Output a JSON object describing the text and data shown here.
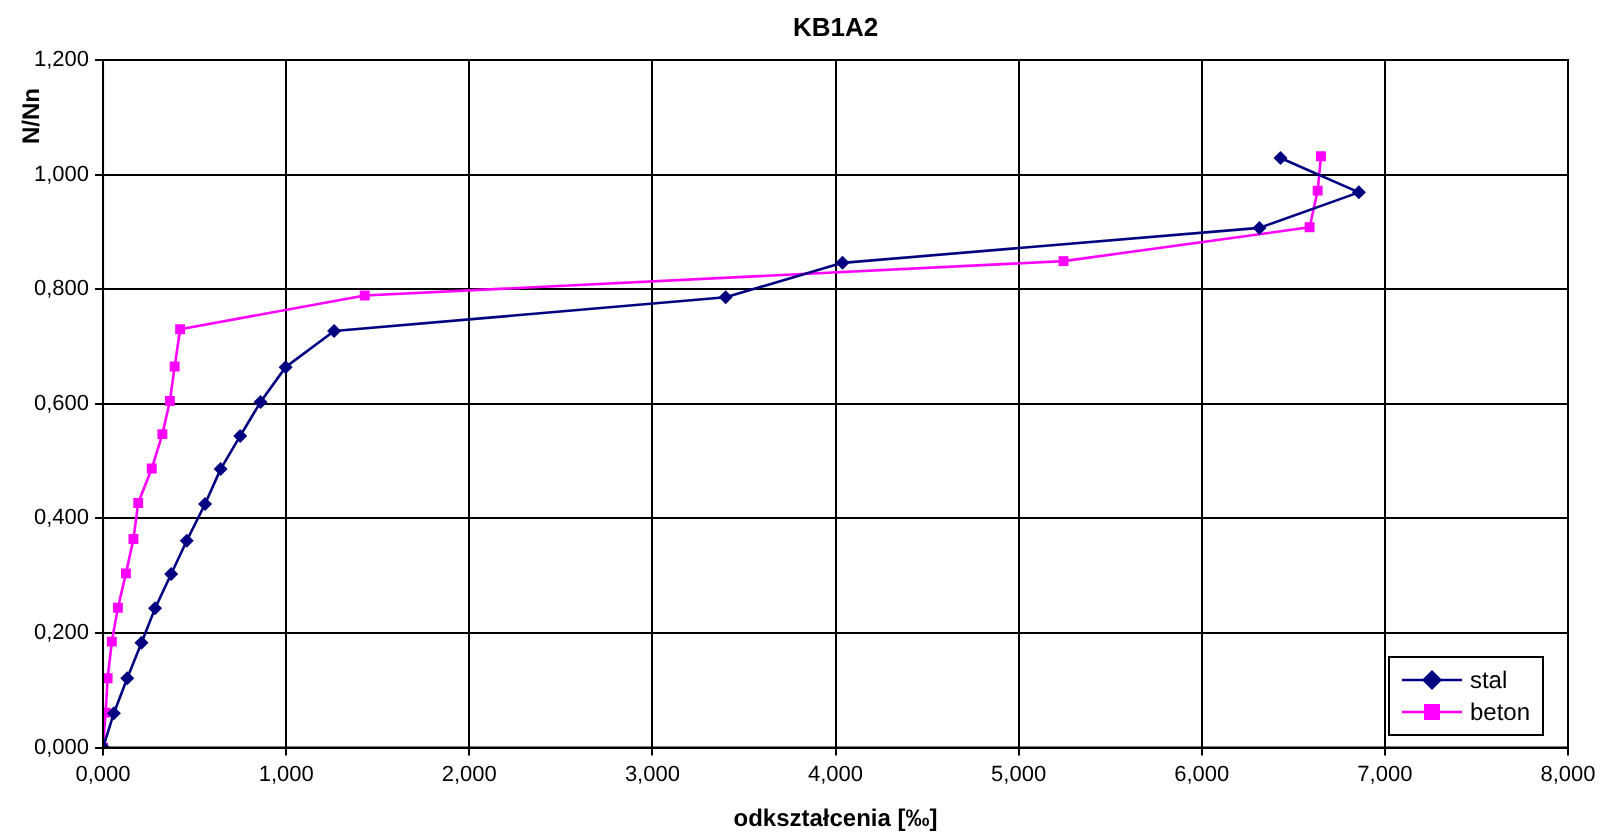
{
  "chart_data": {
    "type": "line",
    "title": "KB1A2",
    "xlabel": "odkształcenia [‰]",
    "ylabel": "N/Nn",
    "series": [
      {
        "name": "stal",
        "color": "#000080",
        "marker": "diamond",
        "x": [
          0,
          0.059,
          0.132,
          0.21,
          0.284,
          0.372,
          0.457,
          0.557,
          0.642,
          0.749,
          0.86,
          0.997,
          1.262,
          3.4,
          4.038,
          6.315,
          6.858,
          6.43
        ],
        "values": [
          0,
          0.06,
          0.121,
          0.183,
          0.243,
          0.303,
          0.361,
          0.425,
          0.486,
          0.544,
          0.603,
          0.664,
          0.727,
          0.786,
          0.846,
          0.907,
          0.969,
          1.029
        ]
      },
      {
        "name": "beton",
        "color": "#ff00ff",
        "marker": "square",
        "x": [
          0,
          0.014,
          0.025,
          0.048,
          0.081,
          0.125,
          0.166,
          0.192,
          0.266,
          0.324,
          0.365,
          0.391,
          0.421,
          1.429,
          5.245,
          6.589,
          6.633,
          6.651
        ],
        "values": [
          0,
          0.061,
          0.121,
          0.185,
          0.244,
          0.304,
          0.364,
          0.427,
          0.487,
          0.547,
          0.605,
          0.665,
          0.73,
          0.789,
          0.849,
          0.908,
          0.972,
          1.032
        ]
      }
    ],
    "xlim": [
      0,
      8
    ],
    "xticks": [
      {
        "value": 0,
        "label": "0,000"
      },
      {
        "value": 1,
        "label": "1,000"
      },
      {
        "value": 2,
        "label": "2,000"
      },
      {
        "value": 3,
        "label": "3,000"
      },
      {
        "value": 4,
        "label": "4,000"
      },
      {
        "value": 5,
        "label": "5,000"
      },
      {
        "value": 6,
        "label": "6,000"
      },
      {
        "value": 7,
        "label": "7,000"
      },
      {
        "value": 8,
        "label": "8,000"
      }
    ],
    "ylim": [
      0,
      1.2
    ],
    "yticks": [
      {
        "value": 0,
        "label": "0,000"
      },
      {
        "value": 0.2,
        "label": "0,200"
      },
      {
        "value": 0.4,
        "label": "0,400"
      },
      {
        "value": 0.6,
        "label": "0,600"
      },
      {
        "value": 0.8,
        "label": "0,800"
      },
      {
        "value": 1,
        "label": "1,000"
      },
      {
        "value": 1.2,
        "label": "1,200"
      }
    ],
    "grid": true,
    "legend": "bottom right",
    "line_style": "solid"
  }
}
